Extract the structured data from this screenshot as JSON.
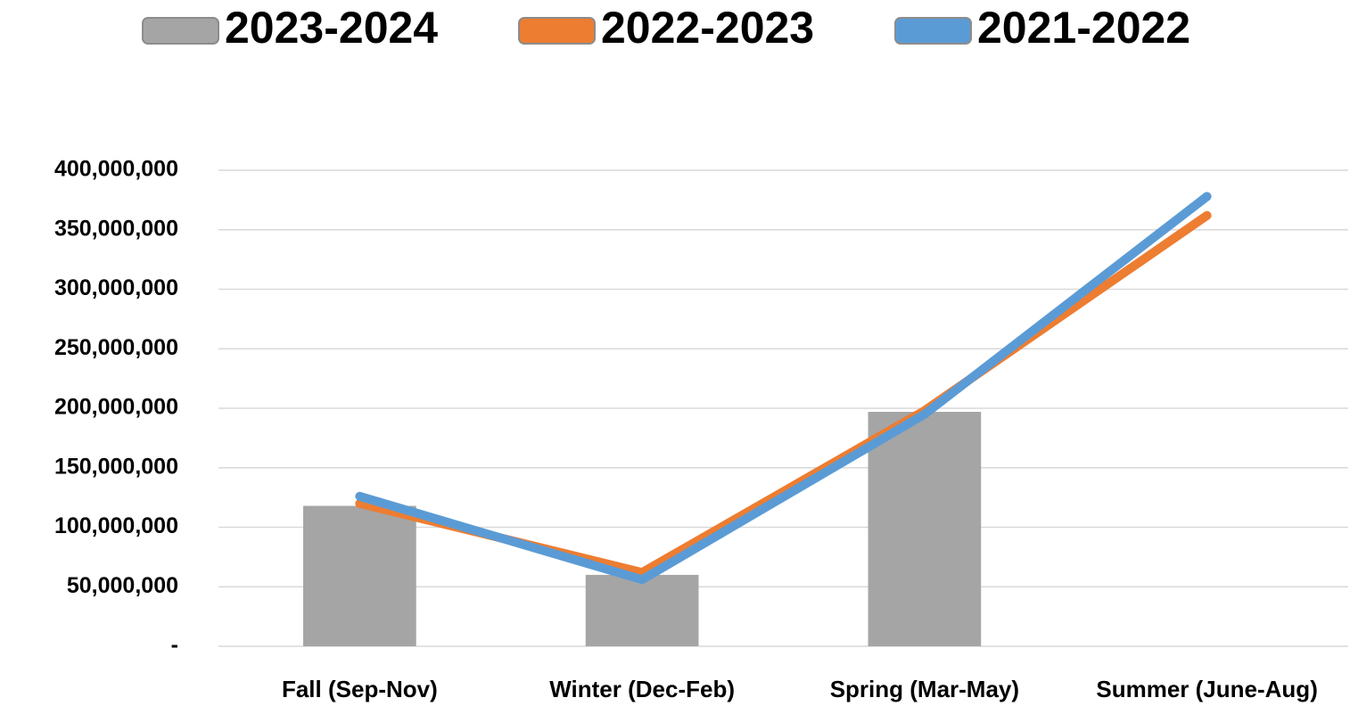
{
  "chart_data": {
    "type": "bar",
    "categories": [
      "Fall (Sep-Nov)",
      "Winter (Dec-Feb)",
      "Spring (Mar-May)",
      "Summer (June-Aug)"
    ],
    "series": [
      {
        "name": "2023-2024",
        "type": "bar",
        "color": "#a5a5a5",
        "values": [
          118000000,
          60000000,
          197000000,
          null
        ]
      },
      {
        "name": "2022-2023",
        "type": "line",
        "color": "#ed7d31",
        "values": [
          120000000,
          62000000,
          198000000,
          362000000
        ]
      },
      {
        "name": "2021-2022",
        "type": "line",
        "color": "#5b9bd5",
        "values": [
          126000000,
          56000000,
          195000000,
          378000000
        ]
      }
    ],
    "ylim": [
      0,
      400000000
    ],
    "yticks": [
      {
        "value": 0,
        "label": "-"
      },
      {
        "value": 50000000,
        "label": "50,000,000"
      },
      {
        "value": 100000000,
        "label": "100,000,000"
      },
      {
        "value": 150000000,
        "label": "150,000,000"
      },
      {
        "value": 200000000,
        "label": "200,000,000"
      },
      {
        "value": 250000000,
        "label": "250,000,000"
      },
      {
        "value": 300000000,
        "label": "300,000,000"
      },
      {
        "value": 350000000,
        "label": "350,000,000"
      },
      {
        "value": 400000000,
        "label": "400,000,000"
      }
    ],
    "grid": true,
    "legend": "top"
  }
}
